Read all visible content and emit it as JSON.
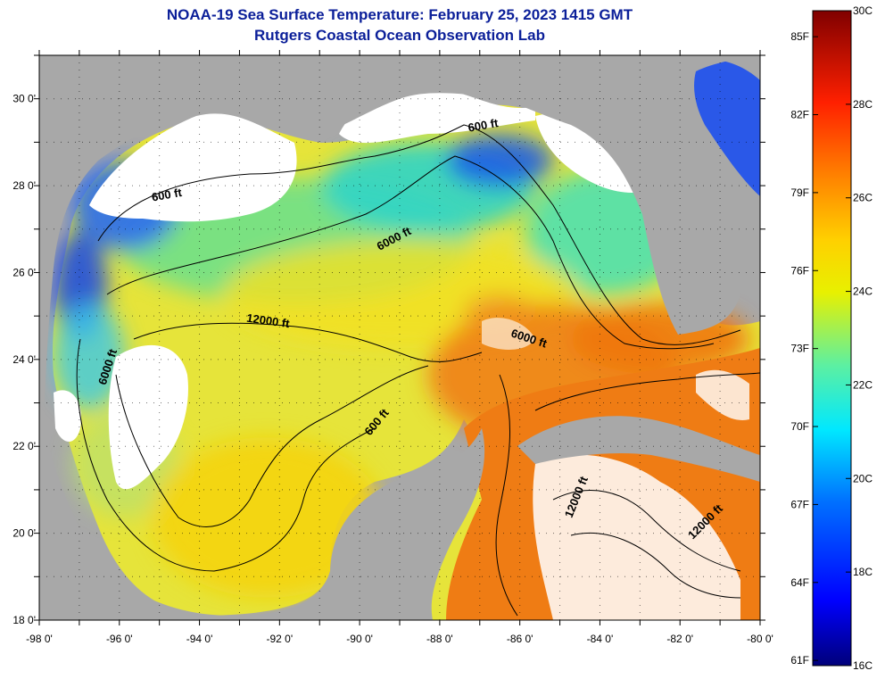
{
  "title": {
    "line1": "NOAA-19 Sea Surface Temperature:  February 25, 2023 1415 GMT",
    "line2": "Rutgers Coastal Ocean Observation Lab"
  },
  "map": {
    "lon_range": [
      -98,
      -80
    ],
    "lat_range": [
      18,
      31
    ],
    "lon_labels": [
      "-98 0'",
      "-96 0'",
      "-94 0'",
      "-92 0'",
      "-90 0'",
      "-88 0'",
      "-86 0'",
      "-84 0'",
      "-82 0'",
      "-80 0'"
    ],
    "lat_labels": [
      "18 0'",
      "20 0'",
      "22 0'",
      "24 0'",
      "26 0'",
      "28 0'",
      "30 0'"
    ],
    "contour_labels": [
      {
        "text": "600 ft",
        "lon": -94.8,
        "lat": 27.7,
        "angle": -10
      },
      {
        "text": "600 ft",
        "lon": -86.9,
        "lat": 29.3,
        "angle": -10
      },
      {
        "text": "6000 ft",
        "lon": -89.1,
        "lat": 26.7,
        "angle": -28
      },
      {
        "text": "12000 ft",
        "lon": -92.3,
        "lat": 24.8,
        "angle": 8
      },
      {
        "text": "6000 ft",
        "lon": -85.8,
        "lat": 24.4,
        "angle": 18
      },
      {
        "text": "6000 ft",
        "lon": -96.2,
        "lat": 23.8,
        "angle": -72
      },
      {
        "text": "600 ft",
        "lon": -89.5,
        "lat": 22.5,
        "angle": -50
      },
      {
        "text": "12000 ft",
        "lon": -84.5,
        "lat": 20.8,
        "angle": -68
      },
      {
        "text": "12000 ft",
        "lon": -81.3,
        "lat": 20.2,
        "angle": -45
      }
    ],
    "colors": {
      "land": "#a8a8a8",
      "cloud": "#ffffff",
      "frame": "#000000"
    }
  },
  "colorbar": {
    "celsius_labels": [
      "30C",
      "28C",
      "26C",
      "24C",
      "22C",
      "20C",
      "18C",
      "16C"
    ],
    "fahrenheit_labels": [
      "85F",
      "82F",
      "79F",
      "76F",
      "73F",
      "70F",
      "67F",
      "64F",
      "61F"
    ],
    "range_c": [
      16,
      30
    ]
  }
}
